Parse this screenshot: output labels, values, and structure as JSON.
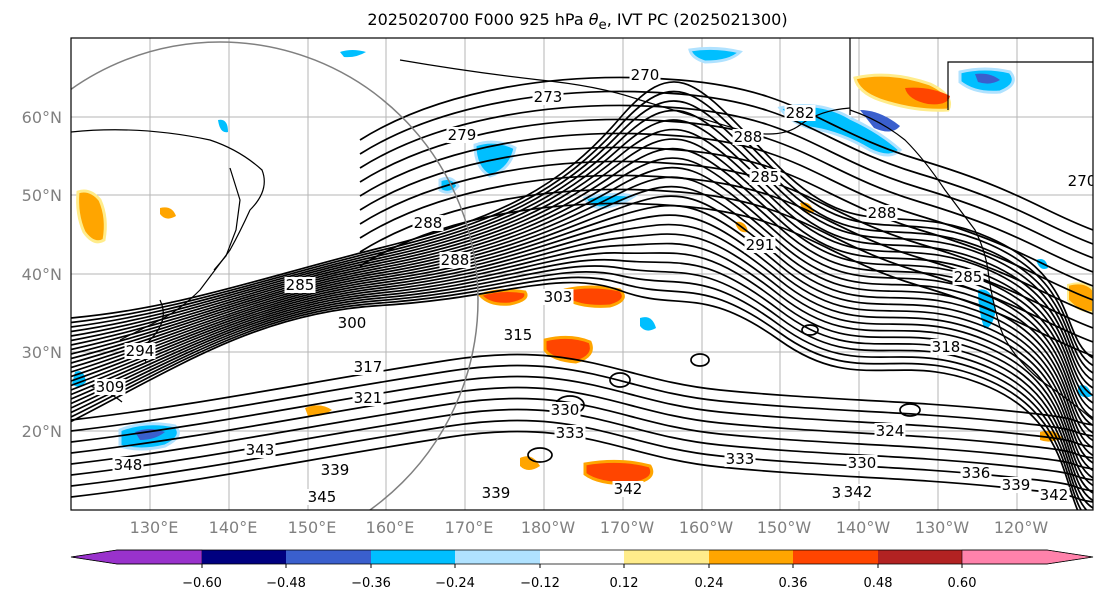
{
  "title": {
    "prefix": "2025020700 F000 925 hPa ",
    "symbol": "θ",
    "subscript": "e",
    "suffix": ", IVT PC (2025021300)"
  },
  "lat_labels": [
    "60°N",
    "50°N",
    "40°N",
    "30°N",
    "20°N"
  ],
  "lon_labels": [
    "130°E",
    "140°E",
    "150°E",
    "160°E",
    "170°E",
    "180°W",
    "170°W",
    "160°W",
    "150°W",
    "140°W",
    "130°W",
    "120°W"
  ],
  "colorbar": {
    "ticks": [
      "−0.60",
      "−0.48",
      "−0.36",
      "−0.24",
      "−0.12",
      "0.12",
      "0.24",
      "0.36",
      "0.48",
      "0.60"
    ],
    "colors": {
      "lt_-0.60": "#9932cc",
      "-0.60_-0.48": "#000080",
      "-0.48_-0.36": "#3a5fcd",
      "-0.36_-0.24": "#00bfff",
      "-0.24_-0.12": "#b0e2ff",
      "-0.12_0.12": "#ffffff",
      "0.12_0.24": "#ffec8b",
      "0.24_0.36": "#ffa500",
      "0.36_0.48": "#ff4500",
      "0.48_0.60": "#b22222",
      "gt_0.60": "#ff82ab"
    }
  },
  "contour_labels": [
    "270",
    "273",
    "279",
    "282",
    "288",
    "285",
    "288",
    "291",
    "288",
    "288",
    "285",
    "285",
    "300",
    "303",
    "315",
    "317",
    "294",
    "309",
    "321",
    "330",
    "333",
    "343",
    "348",
    "339",
    "345",
    "339",
    "342",
    "333",
    "330",
    "324",
    "336",
    "339",
    "342",
    "333",
    "342",
    "270",
    "318"
  ]
}
